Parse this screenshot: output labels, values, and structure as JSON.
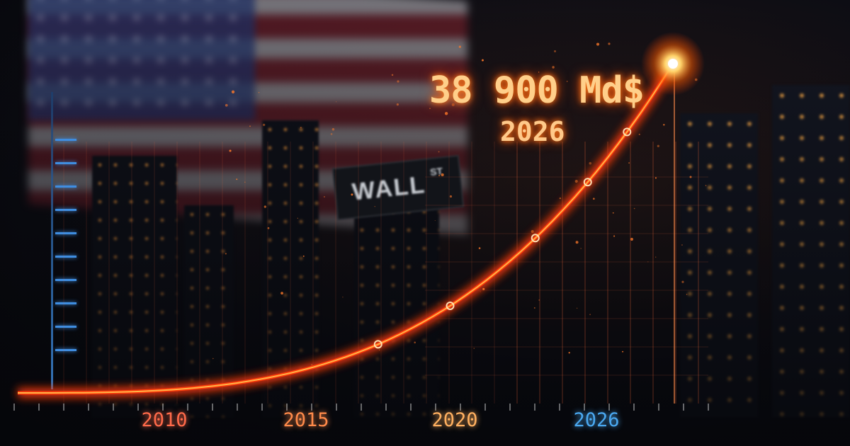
{
  "chart_data": {
    "type": "line",
    "title": "",
    "xlabel": "",
    "ylabel": "",
    "x_ticks": [
      "2010",
      "2015",
      "2020",
      "2026"
    ],
    "annotation": {
      "value": "38 900 Md$",
      "year": "2026"
    },
    "series": [
      {
        "x": [
          2026
        ],
        "y": [
          38900
        ]
      }
    ],
    "grid": true,
    "colors": {
      "line": "#ff3a0a",
      "glow": "#ffb347",
      "tick_2010": "#ff6a4a",
      "tick_2015": "#ff8a4a",
      "tick_2020": "#ffb060",
      "tick_2026": "#4aa8f0",
      "left_axis": "#3f8de0"
    }
  },
  "background": {
    "sign_text": "WALL",
    "sign_suffix": "ST"
  }
}
